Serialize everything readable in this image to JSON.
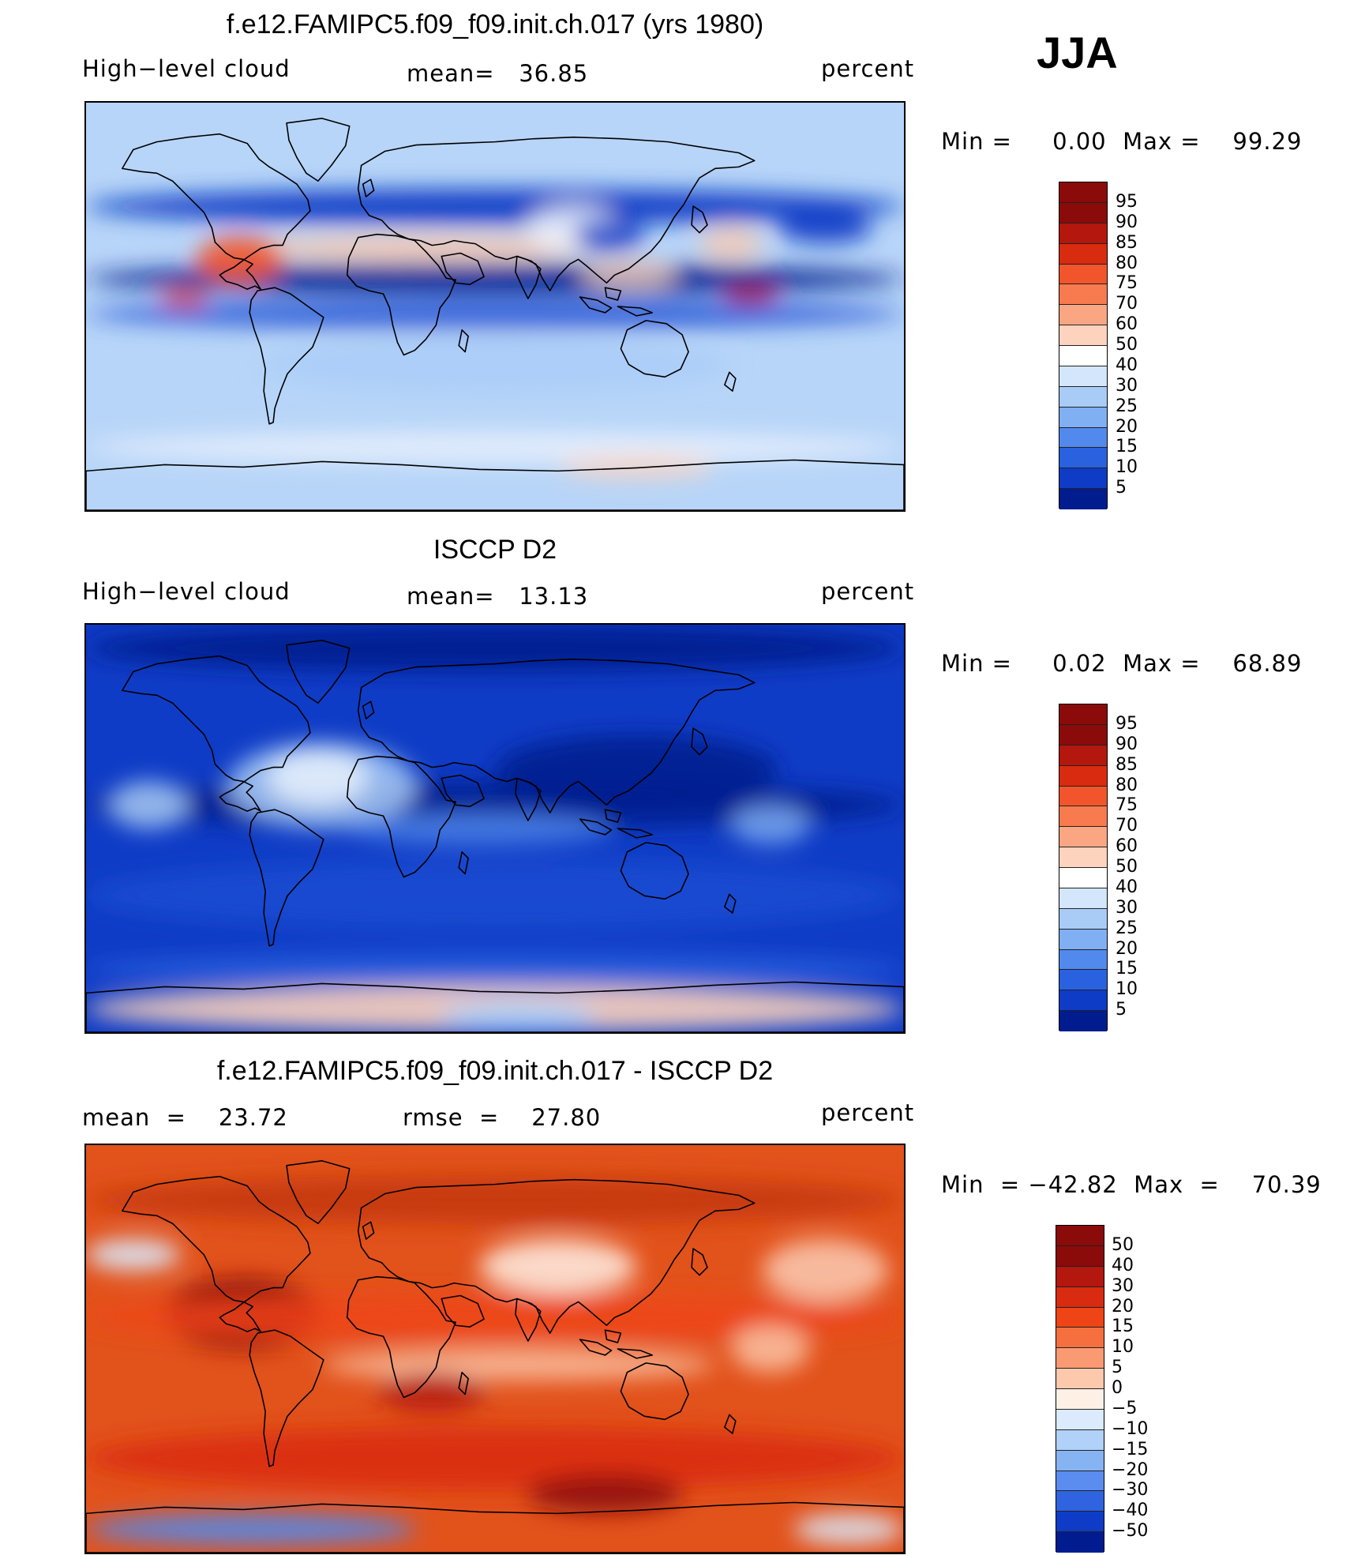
{
  "season": "JJA",
  "panels": [
    {
      "title": "f.e12.FAMIPC5.f09_f09.init.ch.017 (yrs 1980)",
      "left_label": "High−level cloud",
      "center_label": "mean=   36.85",
      "right_label": "percent",
      "minmax_label": "Min =     0.00  Max =    99.29",
      "palette": "model",
      "levels": [
        "95",
        "90",
        "85",
        "80",
        "75",
        "70",
        "60",
        "50",
        "40",
        "30",
        "25",
        "20",
        "15",
        "10",
        "5"
      ]
    },
    {
      "title": "ISCCP D2",
      "left_label": "High−level cloud",
      "center_label": "mean=   13.13",
      "right_label": "percent",
      "minmax_label": "Min =     0.02  Max =    68.89",
      "palette": "obs",
      "levels": [
        "95",
        "90",
        "85",
        "80",
        "75",
        "70",
        "60",
        "50",
        "40",
        "30",
        "25",
        "20",
        "15",
        "10",
        "5"
      ]
    },
    {
      "title": "f.e12.FAMIPC5.f09_f09.init.ch.017 - ISCCP D2",
      "left_label": "mean  =    23.72",
      "center_label": "rmse  =    27.80",
      "right_label": "percent",
      "minmax_label": "Min  = −42.82  Max  =    70.39",
      "palette": "diff",
      "levels": [
        "50",
        "40",
        "30",
        "20",
        "15",
        "10",
        "5",
        "0",
        "−5",
        "−10",
        "−15",
        "−20",
        "−30",
        "−40",
        "−50"
      ]
    }
  ],
  "colors": {
    "seq": [
      "#8b0a0a",
      "#b3170d",
      "#d92b0f",
      "#f2552b",
      "#f77b4f",
      "#fba683",
      "#fdd3bd",
      "#ffffff",
      "#d3e6fb",
      "#a9ccf7",
      "#80aff3",
      "#5289ec",
      "#2a61de",
      "#0f3cc6",
      "#001c8f"
    ],
    "diff": [
      "#8b0a0a",
      "#b3170d",
      "#d92b0f",
      "#ee4416",
      "#f5703e",
      "#fa9a72",
      "#fdc9ad",
      "#fff0e6",
      "#dbeafc",
      "#b1d1f8",
      "#86b4f3",
      "#5a8def",
      "#2f63df",
      "#0f3cc6",
      "#001c8f"
    ]
  }
}
